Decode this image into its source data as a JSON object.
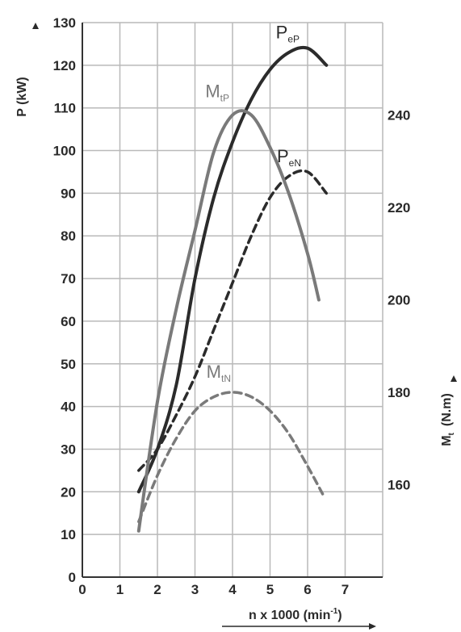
{
  "chart_data": {
    "type": "line",
    "xlabel": "n x 1000  (min",
    "xlabel_sup": "-1",
    "xlabel_close": ")",
    "ylabel": "P  (kW)",
    "y2label": "M",
    "y2label_sub": "t",
    "y2label_units": "(N.m)",
    "x_ticks": [
      0,
      1,
      2,
      3,
      4,
      5,
      6,
      7
    ],
    "xlim": [
      0,
      8
    ],
    "y_ticks": [
      0,
      10,
      20,
      30,
      40,
      50,
      60,
      70,
      80,
      90,
      100,
      110,
      120,
      130
    ],
    "ylim": [
      0,
      130
    ],
    "y2_ticks": [
      160,
      180,
      200,
      220,
      240
    ],
    "y2lim": [
      140,
      260
    ],
    "grid": true,
    "series": [
      {
        "name": "P",
        "sub": "eP",
        "axis": "left",
        "style": "solid",
        "color": "#2b2b2b",
        "x": [
          1.5,
          2.0,
          2.5,
          3.0,
          3.5,
          4.0,
          4.5,
          5.0,
          5.5,
          6.0,
          6.5
        ],
        "y": [
          20,
          30,
          45,
          70,
          89,
          102,
          112,
          119,
          123,
          124,
          120
        ]
      },
      {
        "name": "P",
        "sub": "eN",
        "axis": "left",
        "style": "dashed",
        "color": "#2b2b2b",
        "x": [
          1.5,
          2.0,
          2.5,
          3.0,
          3.5,
          4.0,
          4.5,
          5.0,
          5.5,
          6.0,
          6.5
        ],
        "y": [
          25,
          30,
          38,
          47,
          58,
          69,
          80,
          89,
          94,
          95,
          90
        ]
      },
      {
        "name": "M",
        "sub": "tP",
        "axis": "right",
        "style": "solid",
        "color": "#7a7a7a",
        "x": [
          1.5,
          2.0,
          2.5,
          3.0,
          3.5,
          4.0,
          4.5,
          5.0,
          5.5,
          6.0,
          6.3
        ],
        "y": [
          150,
          178,
          198,
          215,
          232,
          240,
          240,
          233,
          223,
          210,
          200
        ]
      },
      {
        "name": "M",
        "sub": "tN",
        "axis": "right",
        "style": "dashed",
        "color": "#7a7a7a",
        "x": [
          1.5,
          2.0,
          2.5,
          3.0,
          3.5,
          4.0,
          4.5,
          5.0,
          5.5,
          6.0,
          6.4
        ],
        "y": [
          152,
          162,
          170,
          176,
          179,
          180,
          179,
          176,
          171,
          164,
          158
        ]
      }
    ]
  }
}
